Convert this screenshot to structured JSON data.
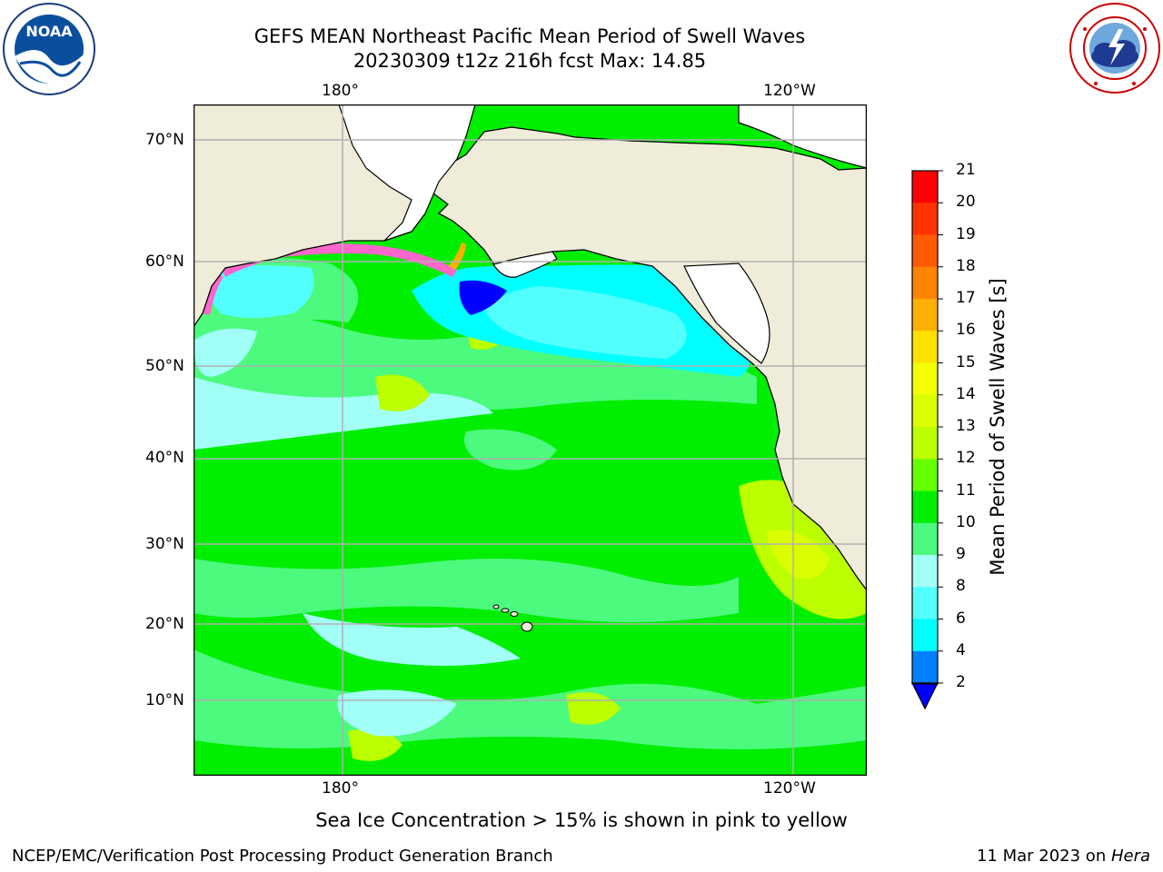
{
  "header": {
    "title_line1": "GEFS MEAN Northeast Pacific Mean Period of Swell Waves",
    "title_line2": "20230309 t12z 216h fcst   Max: 14.85"
  },
  "logos": {
    "left": {
      "name": "NOAA",
      "icon": "noaa-logo-icon",
      "text": "NOAA"
    },
    "right": {
      "name": "National Weather Service",
      "icon": "nws-logo-icon"
    }
  },
  "map": {
    "lon_labels": [
      "180°",
      "120°W"
    ],
    "lat_labels": [
      "70°N",
      "60°N",
      "50°N",
      "40°N",
      "30°N",
      "20°N",
      "10°N"
    ],
    "land_color": "#efedd9",
    "grid_color": "#b0b0b0"
  },
  "colorbar": {
    "label": "Mean Period of Swell Waves [s]",
    "ticks": [
      "21",
      "20",
      "19",
      "18",
      "17",
      "16",
      "15",
      "14",
      "13",
      "12",
      "11",
      "10",
      "9",
      "8",
      "6",
      "4",
      "2"
    ],
    "colors": [
      "#ff0000",
      "#ff3300",
      "#ff5a00",
      "#ff8400",
      "#ffb000",
      "#ffe100",
      "#f4ff00",
      "#d9ff00",
      "#bbff00",
      "#66ff00",
      "#00ee00",
      "#4cfa7e",
      "#a2fff7",
      "#52ffff",
      "#00ffff",
      "#0080ff",
      "#0000ff"
    ]
  },
  "notes": {
    "ice_note": "Sea Ice Concentration > 15% is shown in pink to yellow"
  },
  "footer": {
    "left": "NCEP/EMC/Verification Post Processing Product Generation Branch",
    "right_prefix": "11 Mar 2023 on ",
    "right_machine": "Hera"
  }
}
